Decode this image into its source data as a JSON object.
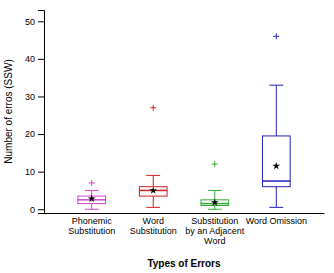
{
  "chart_data": {
    "type": "box",
    "xlabel": "Types of Errors",
    "ylabel": "Number of erros (SSW)",
    "categories": [
      "Phonemic\nSubstitution",
      "Word\nSubstitution",
      "Substitution\nby an Adjacent\nWord",
      "Word Omission"
    ],
    "whisker_low": [
      0,
      0.5,
      0.0,
      0.5
    ],
    "q1": [
      1.5,
      3.5,
      1.0,
      6.0
    ],
    "median": [
      2.5,
      5.0,
      1.5,
      7.5
    ],
    "q3": [
      3.5,
      6.0,
      2.5,
      19.5
    ],
    "whisker_high": [
      5.0,
      9.0,
      5.0,
      33.0
    ],
    "outliers": [
      [
        7
      ],
      [
        27
      ],
      [
        12
      ],
      [
        46
      ]
    ],
    "means": [
      2.8,
      5.0,
      1.8,
      11.5
    ],
    "colors": [
      "#cc44cc",
      "#cc2222",
      "#33aa33",
      "#2222bb"
    ],
    "ylim": [
      -1,
      53
    ],
    "yticks": [
      0,
      10,
      20,
      30,
      40,
      50
    ]
  }
}
